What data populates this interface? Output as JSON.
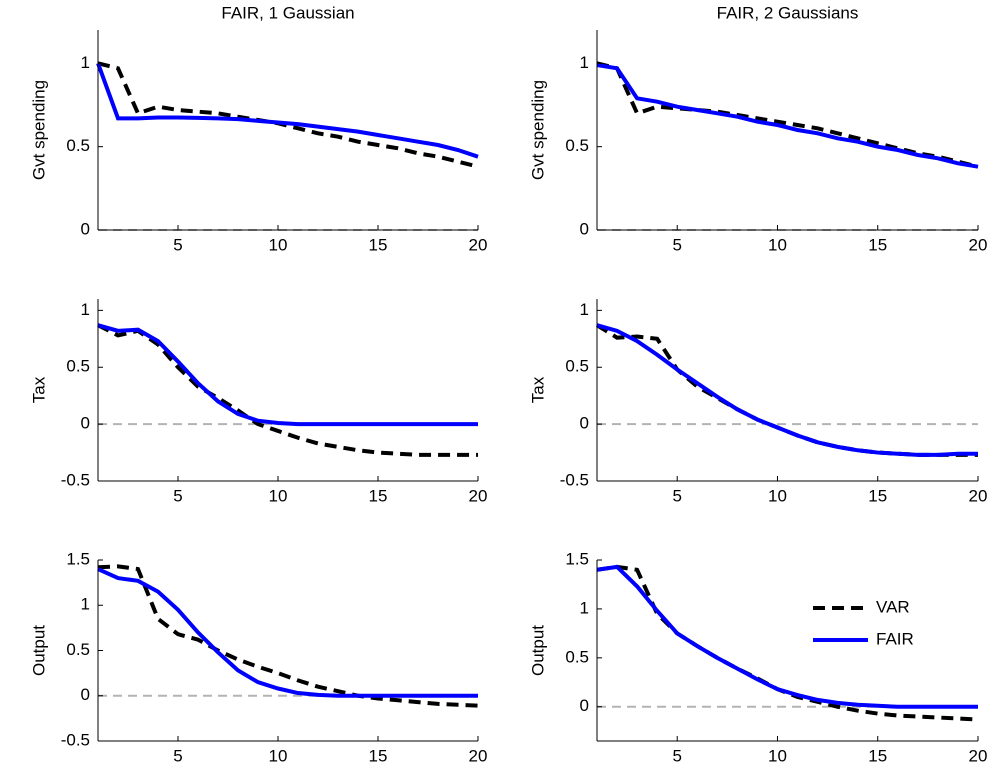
{
  "chart_data": [
    {
      "type": "line",
      "title": "FAIR, 1 Gaussian",
      "ylabel": "Gvt spending",
      "x": [
        1,
        2,
        3,
        4,
        5,
        6,
        7,
        8,
        9,
        10,
        11,
        12,
        13,
        14,
        15,
        16,
        17,
        18,
        19,
        20
      ],
      "xlim": [
        1,
        20
      ],
      "xticks": [
        5,
        10,
        15,
        20
      ],
      "ylim": [
        0,
        1.2
      ],
      "yticks": [
        0,
        0.5,
        1
      ],
      "reference_line": 0,
      "reference_color": "#b3b3b3",
      "series": [
        {
          "color": "#000000",
          "linestyle": "dashed",
          "values": [
            1,
            0.97,
            0.7,
            0.74,
            0.72,
            0.71,
            0.7,
            0.68,
            0.66,
            0.64,
            0.61,
            0.58,
            0.56,
            0.53,
            0.51,
            0.49,
            0.46,
            0.44,
            0.41,
            0.38
          ]
        },
        {
          "color": "#0000ff",
          "linestyle": "solid",
          "values": [
            1,
            0.67,
            0.67,
            0.675,
            0.675,
            0.673,
            0.67,
            0.665,
            0.655,
            0.645,
            0.635,
            0.62,
            0.605,
            0.59,
            0.57,
            0.55,
            0.53,
            0.51,
            0.48,
            0.44
          ]
        }
      ]
    },
    {
      "type": "line",
      "title": "FAIR, 2 Gaussians",
      "ylabel": "Gvt spending",
      "x": [
        1,
        2,
        3,
        4,
        5,
        6,
        7,
        8,
        9,
        10,
        11,
        12,
        13,
        14,
        15,
        16,
        17,
        18,
        19,
        20
      ],
      "xlim": [
        1,
        20
      ],
      "xticks": [
        5,
        10,
        15,
        20
      ],
      "ylim": [
        0,
        1.2
      ],
      "yticks": [
        0,
        0.5,
        1
      ],
      "reference_line": 0,
      "reference_color": "#b3b3b3",
      "series": [
        {
          "color": "#000000",
          "linestyle": "dashed",
          "values": [
            1,
            0.97,
            0.7,
            0.74,
            0.73,
            0.72,
            0.71,
            0.69,
            0.67,
            0.65,
            0.63,
            0.61,
            0.58,
            0.55,
            0.52,
            0.49,
            0.46,
            0.44,
            0.41,
            0.38
          ]
        },
        {
          "color": "#0000ff",
          "linestyle": "solid",
          "values": [
            0.99,
            0.97,
            0.79,
            0.77,
            0.74,
            0.72,
            0.7,
            0.68,
            0.65,
            0.63,
            0.6,
            0.58,
            0.55,
            0.53,
            0.5,
            0.48,
            0.45,
            0.43,
            0.4,
            0.38
          ]
        }
      ]
    },
    {
      "type": "line",
      "ylabel": "Tax",
      "x": [
        1,
        2,
        3,
        4,
        5,
        6,
        7,
        8,
        9,
        10,
        11,
        12,
        13,
        14,
        15,
        16,
        17,
        18,
        19,
        20
      ],
      "xlim": [
        1,
        20
      ],
      "xticks": [
        5,
        10,
        15,
        20
      ],
      "ylim": [
        -0.5,
        1.1
      ],
      "yticks": [
        -0.5,
        0,
        0.5,
        1
      ],
      "reference_line": 0,
      "reference_color": "#b3b3b3",
      "series": [
        {
          "color": "#000000",
          "linestyle": "dashed",
          "values": [
            0.87,
            0.78,
            0.82,
            0.7,
            0.5,
            0.33,
            0.23,
            0.12,
            0,
            -0.06,
            -0.12,
            -0.17,
            -0.2,
            -0.23,
            -0.25,
            -0.26,
            -0.27,
            -0.27,
            -0.27,
            -0.27
          ]
        },
        {
          "color": "#0000ff",
          "linestyle": "solid",
          "values": [
            0.87,
            0.82,
            0.83,
            0.73,
            0.55,
            0.36,
            0.2,
            0.09,
            0.03,
            0.01,
            0,
            0,
            0,
            0,
            0,
            0,
            0,
            0,
            0,
            0
          ]
        }
      ]
    },
    {
      "type": "line",
      "ylabel": "Tax",
      "x": [
        1,
        2,
        3,
        4,
        5,
        6,
        7,
        8,
        9,
        10,
        11,
        12,
        13,
        14,
        15,
        16,
        17,
        18,
        19,
        20
      ],
      "xlim": [
        1,
        20
      ],
      "xticks": [
        5,
        10,
        15,
        20
      ],
      "ylim": [
        -0.5,
        1.1
      ],
      "yticks": [
        -0.5,
        0,
        0.5,
        1
      ],
      "reference_line": 0,
      "reference_color": "#b3b3b3",
      "series": [
        {
          "color": "#000000",
          "linestyle": "dashed",
          "values": [
            0.87,
            0.76,
            0.77,
            0.75,
            0.48,
            0.33,
            0.23,
            0.13,
            0.04,
            -0.03,
            -0.1,
            -0.16,
            -0.2,
            -0.23,
            -0.25,
            -0.26,
            -0.27,
            -0.27,
            -0.27,
            -0.27
          ]
        },
        {
          "color": "#0000ff",
          "linestyle": "solid",
          "values": [
            0.87,
            0.82,
            0.73,
            0.61,
            0.48,
            0.36,
            0.24,
            0.13,
            0.04,
            -0.03,
            -0.1,
            -0.16,
            -0.2,
            -0.23,
            -0.25,
            -0.26,
            -0.27,
            -0.27,
            -0.26,
            -0.26
          ]
        }
      ]
    },
    {
      "type": "line",
      "ylabel": "Output",
      "x": [
        1,
        2,
        3,
        4,
        5,
        6,
        7,
        8,
        9,
        10,
        11,
        12,
        13,
        14,
        15,
        16,
        17,
        18,
        19,
        20
      ],
      "xlim": [
        1,
        20
      ],
      "xticks": [
        5,
        10,
        15,
        20
      ],
      "ylim": [
        -0.5,
        1.5
      ],
      "yticks": [
        -0.5,
        0,
        0.5,
        1,
        1.5
      ],
      "reference_line": 0,
      "reference_color": "#b3b3b3",
      "series": [
        {
          "color": "#000000",
          "linestyle": "dashed",
          "values": [
            1.42,
            1.43,
            1.4,
            0.85,
            0.68,
            0.62,
            0.5,
            0.4,
            0.32,
            0.25,
            0.17,
            0.1,
            0.05,
            0,
            -0.03,
            -0.05,
            -0.07,
            -0.09,
            -0.1,
            -0.11
          ]
        },
        {
          "color": "#0000ff",
          "linestyle": "solid",
          "values": [
            1.4,
            1.3,
            1.27,
            1.15,
            0.95,
            0.7,
            0.48,
            0.28,
            0.15,
            0.08,
            0.03,
            0.01,
            0,
            0,
            0,
            0,
            0,
            0,
            0,
            0
          ]
        }
      ]
    },
    {
      "type": "line",
      "ylabel": "Output",
      "x": [
        1,
        2,
        3,
        4,
        5,
        6,
        7,
        8,
        9,
        10,
        11,
        12,
        13,
        14,
        15,
        16,
        17,
        18,
        19,
        20
      ],
      "xlim": [
        1,
        20
      ],
      "xticks": [
        5,
        10,
        15,
        20
      ],
      "ylim": [
        -0.35,
        1.5
      ],
      "yticks": [
        0,
        0.5,
        1,
        1.5
      ],
      "reference_line": 0,
      "reference_color": "#b3b3b3",
      "legend": "upper right",
      "series": [
        {
          "name": "VAR",
          "color": "#000000",
          "linestyle": "dashed",
          "values": [
            1.4,
            1.43,
            1.4,
            0.95,
            0.75,
            0.62,
            0.5,
            0.39,
            0.29,
            0.18,
            0.1,
            0.05,
            0,
            -0.04,
            -0.07,
            -0.09,
            -0.1,
            -0.11,
            -0.12,
            -0.13
          ]
        },
        {
          "name": "FAIR",
          "color": "#0000ff",
          "linestyle": "solid",
          "values": [
            1.4,
            1.43,
            1.23,
            0.98,
            0.75,
            0.62,
            0.5,
            0.39,
            0.28,
            0.18,
            0.12,
            0.07,
            0.04,
            0.02,
            0.01,
            0,
            0,
            0,
            0,
            0
          ]
        }
      ]
    }
  ]
}
